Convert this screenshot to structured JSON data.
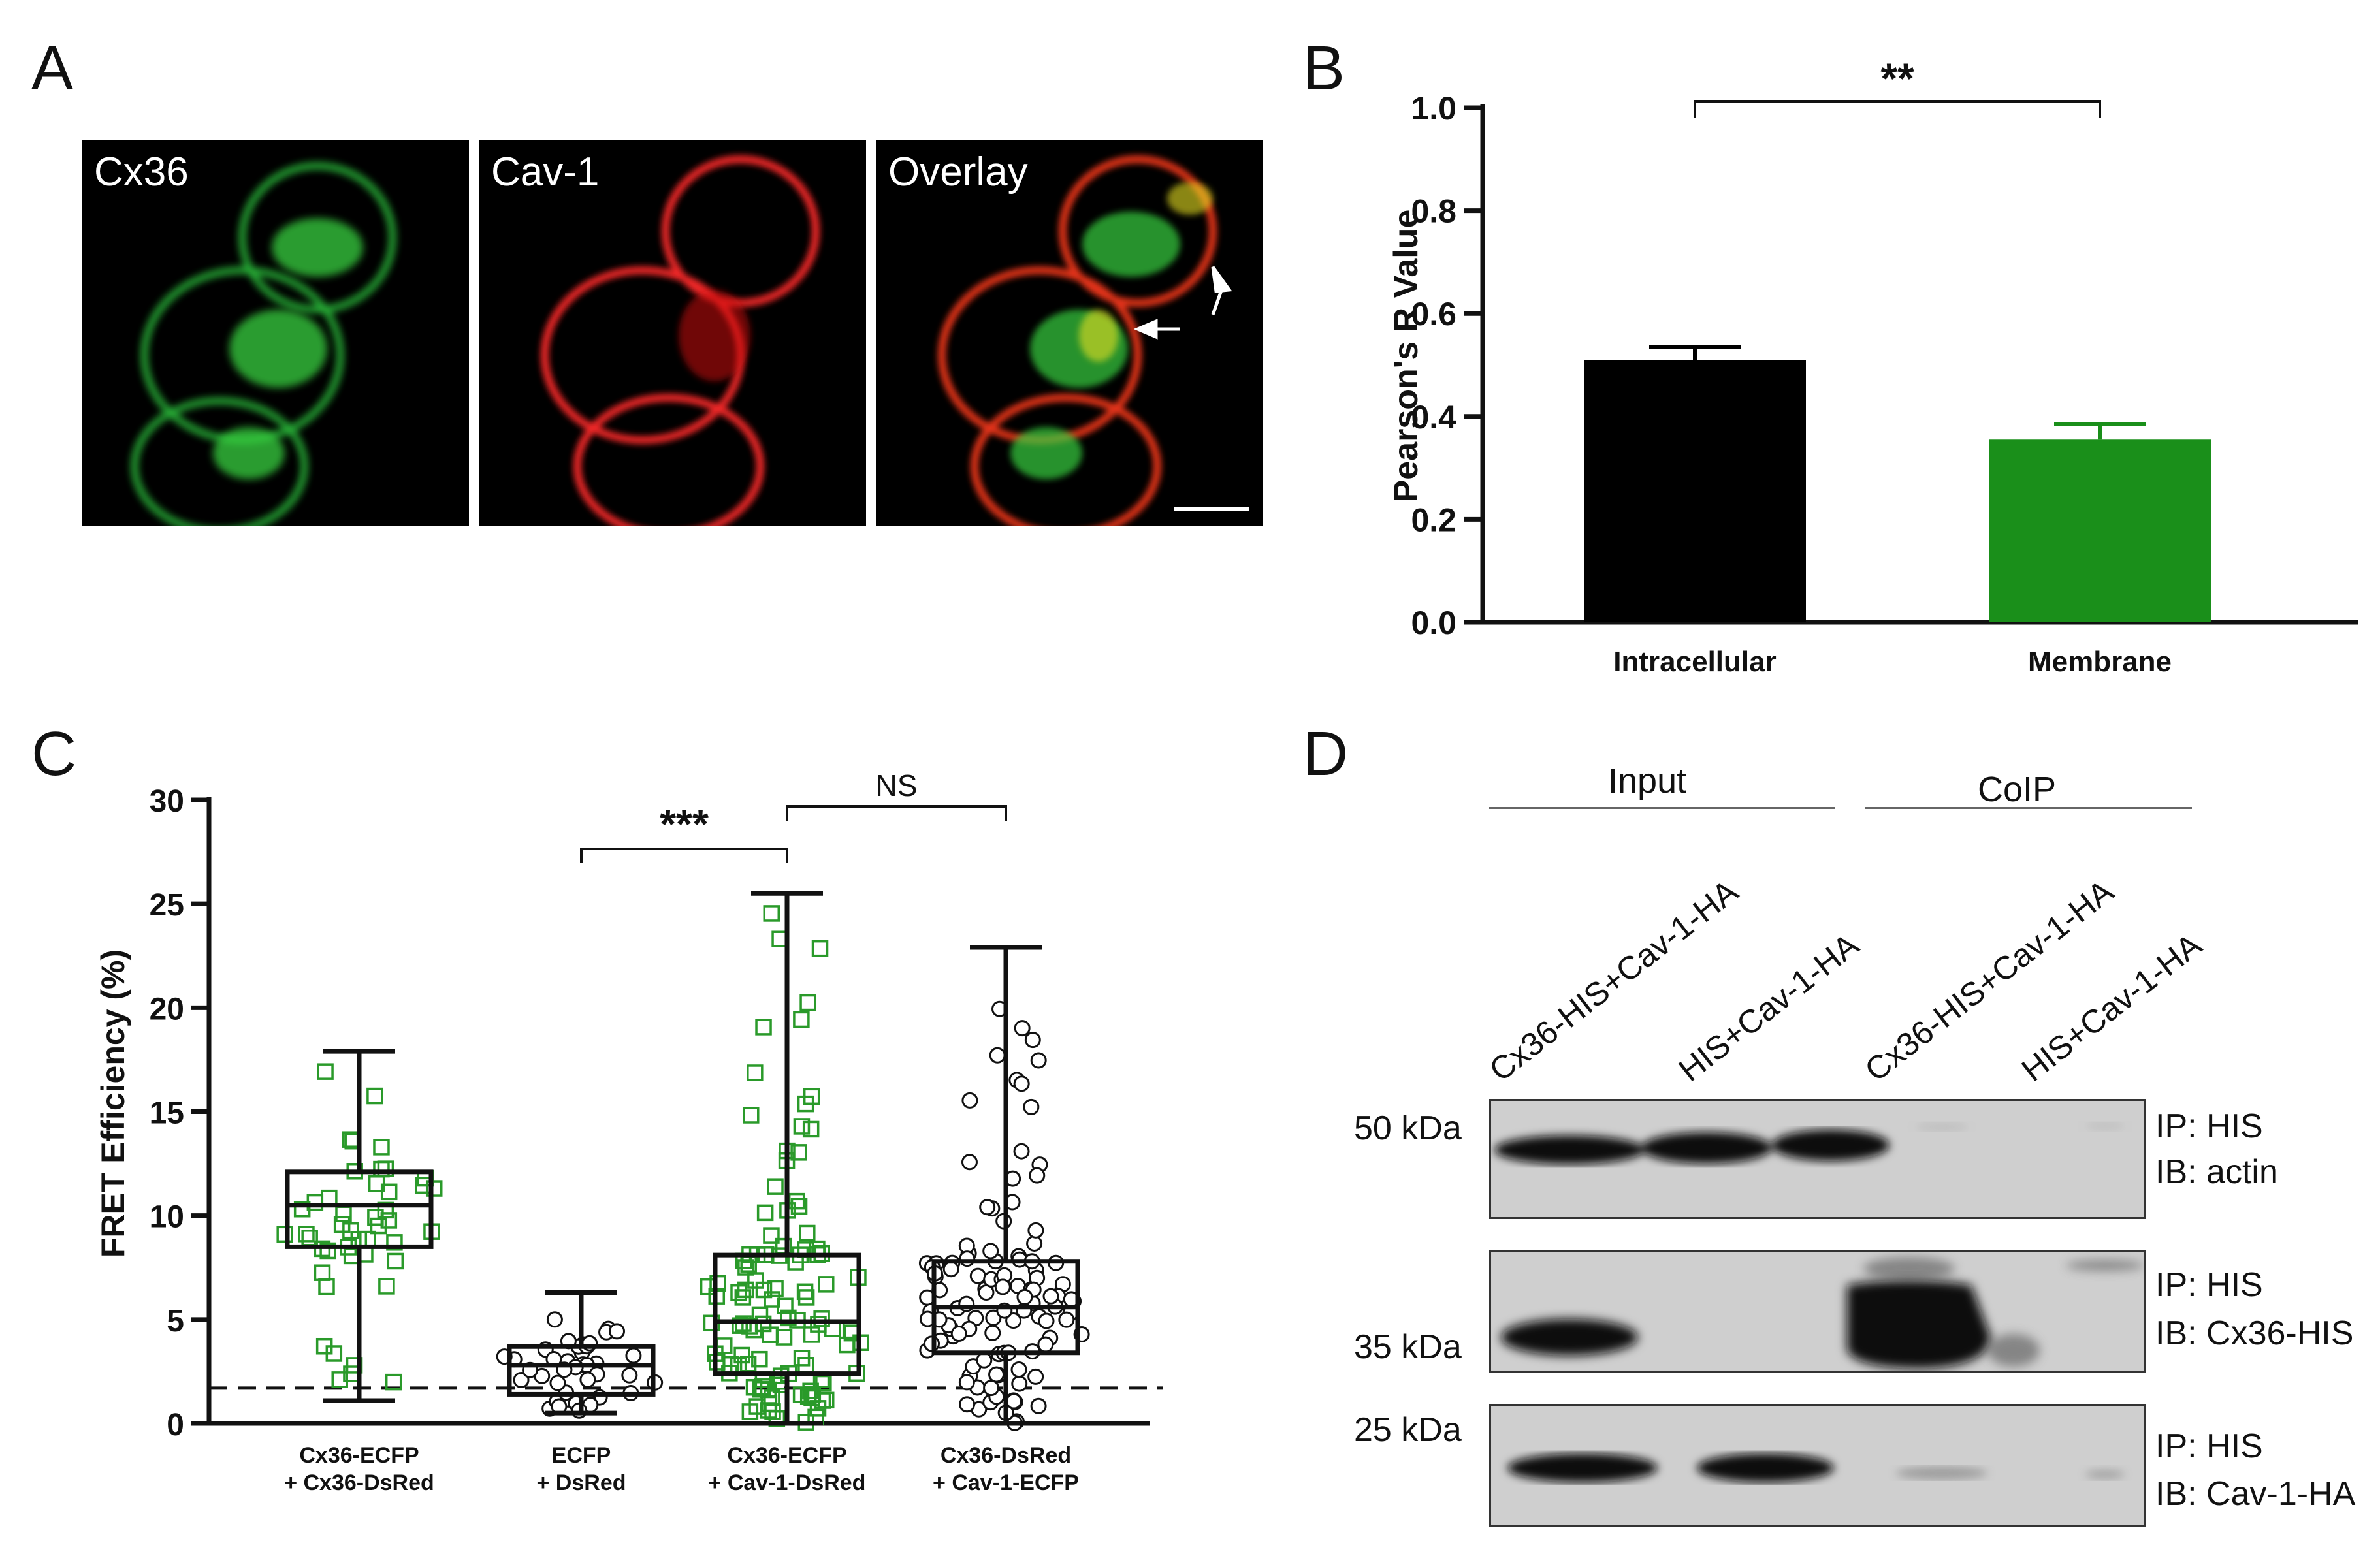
{
  "panels": {
    "a": "A",
    "b": "B",
    "c": "C",
    "d": "D"
  },
  "panel_a": {
    "images": [
      {
        "label": "Cx36",
        "channel": "green"
      },
      {
        "label": "Cav-1",
        "channel": "red"
      },
      {
        "label": "Overlay",
        "channel": "overlay"
      }
    ]
  },
  "colors": {
    "green": "#1a8f1a",
    "black": "#000000",
    "box_green": "#2a9a2a"
  },
  "chart_data": [
    {
      "panel": "B",
      "type": "bar",
      "categories": [
        "Intracellular",
        "Membrane"
      ],
      "values": [
        0.51,
        0.355
      ],
      "errors": [
        0.025,
        0.03
      ],
      "bar_colors": [
        "#000000",
        "#1a8f1a"
      ],
      "ylabel": "Pearson's R Value",
      "ylim": [
        0,
        1.0
      ],
      "yticks": [
        "0.0",
        "0.2",
        "0.4",
        "0.6",
        "0.8",
        "1.0"
      ],
      "significance": {
        "between": [
          "Intracellular",
          "Membrane"
        ],
        "label": "**"
      }
    },
    {
      "panel": "C",
      "type": "box",
      "ylabel": "FRET Efficiency (%)",
      "ylim": [
        0,
        30
      ],
      "yticks": [
        "0",
        "5",
        "10",
        "15",
        "20",
        "25",
        "30"
      ],
      "threshold_line": 1.7,
      "groups": [
        {
          "label_line1": "Cx36-ECFP",
          "label_line2": "+ Cx36-DsRed",
          "marker": "green-square",
          "min": 1.1,
          "q1": 8.5,
          "median": 10.5,
          "q3": 12.1,
          "max": 17.9
        },
        {
          "label_line1": "ECFP",
          "label_line2": "+ DsRed",
          "marker": "black-circle",
          "min": 0.5,
          "q1": 1.4,
          "median": 2.8,
          "q3": 3.7,
          "max": 6.3
        },
        {
          "label_line1": "Cx36-ECFP",
          "label_line2": "+ Cav-1-DsRed",
          "marker": "green-square",
          "min": 0.0,
          "q1": 2.4,
          "median": 4.9,
          "q3": 8.1,
          "max": 25.5
        },
        {
          "label_line1": "Cx36-DsRed",
          "label_line2": "+ Cav-1-ECFP",
          "marker": "black-circle",
          "min": 0.0,
          "q1": 3.4,
          "median": 5.6,
          "q3": 7.8,
          "max": 22.9
        }
      ],
      "significance": [
        {
          "from": 1,
          "to": 2,
          "label": "***"
        },
        {
          "from": 2,
          "to": 3,
          "label": "NS"
        }
      ]
    }
  ],
  "panel_d": {
    "group_input": "Input",
    "group_coip": "CoIP",
    "lanes": [
      "Cx36-HIS+Cav-1-HA",
      "HIS+Cav-1-HA",
      "Cx36-HIS+Cav-1-HA",
      "HIS+Cav-1-HA"
    ],
    "markers": [
      "50 kDa",
      "35 kDa",
      "25 kDa"
    ],
    "blots": [
      {
        "ip": "IP: HIS",
        "ib": "IB: actin"
      },
      {
        "ip": "IP: HIS",
        "ib": "IB: Cx36-HIS"
      },
      {
        "ip": "IP: HIS",
        "ib": "IB: Cav-1-HA"
      }
    ]
  }
}
